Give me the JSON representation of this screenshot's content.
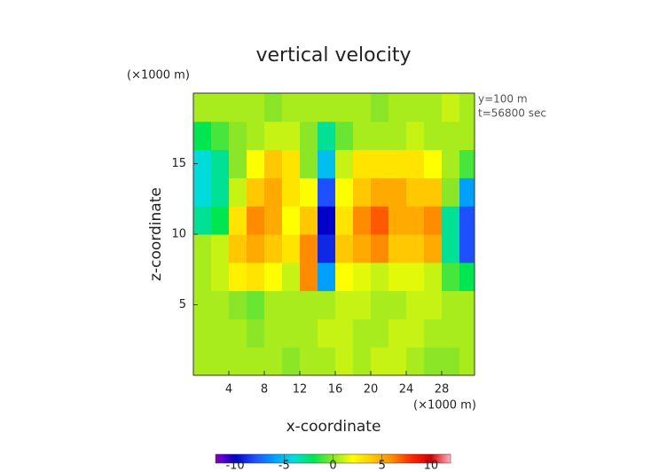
{
  "chart_data": {
    "type": "contour",
    "title": "vertical velocity",
    "xlabel": "x-coordinate",
    "ylabel": "z-coordinate",
    "x_unit": "(×1000 m)",
    "y_unit": "(×1000 m)",
    "annotations": [
      "y=100 m",
      "t=56800 sec"
    ],
    "x": [
      1,
      3,
      5,
      7,
      9,
      11,
      13,
      15,
      17,
      19,
      21,
      23,
      25,
      27,
      29,
      31
    ],
    "z": [
      1,
      3,
      5,
      7,
      9,
      11,
      13,
      15,
      17,
      19
    ],
    "values": [
      [
        0.5,
        0.5,
        0.5,
        0.5,
        0.5,
        0,
        0.5,
        0.5,
        1,
        0.5,
        1,
        1,
        0.5,
        0,
        0,
        0.5
      ],
      [
        0.5,
        0.5,
        0.5,
        0,
        0.5,
        0.5,
        0.5,
        1,
        1,
        0.5,
        0.5,
        1,
        1,
        0.5,
        0.5,
        0.5
      ],
      [
        0.5,
        0.5,
        0,
        -0.5,
        0.5,
        0.5,
        0.5,
        0.5,
        1,
        1,
        0.5,
        0.5,
        1,
        1,
        0.5,
        0.5
      ],
      [
        0.5,
        1,
        2.5,
        3,
        2,
        1,
        6,
        -6,
        2,
        1.5,
        1,
        1.5,
        1.5,
        1,
        -1,
        -2
      ],
      [
        0.5,
        1,
        4,
        5,
        4,
        3,
        6,
        -9,
        4,
        5,
        6,
        4,
        4,
        5,
        -3,
        -8
      ],
      [
        -3,
        -2,
        3,
        6,
        5,
        2,
        4,
        -10,
        3,
        6,
        7,
        5,
        5,
        6,
        -3,
        -8
      ],
      [
        -4,
        -3,
        1,
        4,
        5,
        3,
        2,
        -8,
        2,
        4,
        5,
        5,
        4,
        4,
        0,
        -6
      ],
      [
        -4,
        -3,
        0,
        2,
        4,
        3,
        0,
        -5,
        1,
        3,
        3,
        3,
        3,
        2,
        0.5,
        -1
      ],
      [
        -2,
        -1,
        0,
        0.5,
        1,
        1,
        0,
        -3,
        -0.5,
        0.5,
        0.5,
        0.5,
        1,
        0.5,
        0.5,
        0.5
      ],
      [
        0.5,
        0.5,
        0.5,
        0.5,
        0,
        0.5,
        0.5,
        0.5,
        0.5,
        0.5,
        0,
        0.5,
        0.5,
        0.5,
        1,
        0.5
      ]
    ],
    "xlim": [
      0,
      31.7
    ],
    "ylim": [
      0,
      20
    ],
    "xticks": [
      4,
      8,
      12,
      16,
      20,
      24,
      28
    ],
    "yticks": [
      5,
      10,
      15
    ],
    "clim": [
      -12,
      12
    ],
    "cticks": [
      -10,
      -5,
      0,
      5,
      10
    ],
    "colorscale": [
      "#8a00c8",
      "#0000c8",
      "#1e50ff",
      "#00a0ff",
      "#00dcdc",
      "#00e650",
      "#8ce628",
      "#ffff00",
      "#ffc800",
      "#ff8c00",
      "#ff2800",
      "#d20000",
      "#ffb4c8"
    ]
  }
}
